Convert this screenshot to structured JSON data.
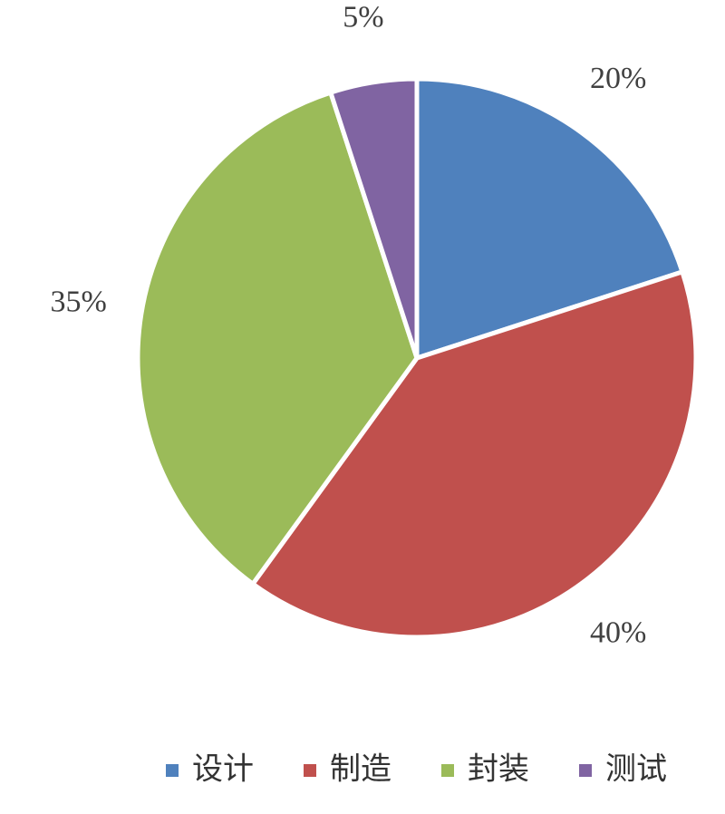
{
  "chart_data": {
    "type": "pie",
    "categories": [
      "设计",
      "制造",
      "封装",
      "测试"
    ],
    "values": [
      20,
      40,
      35,
      5
    ],
    "value_labels": [
      "20%",
      "40%",
      "35%",
      "5%"
    ],
    "colors": [
      "#4f81bd",
      "#c0504d",
      "#9bbb59",
      "#8064a2"
    ],
    "legend": "bottom"
  }
}
